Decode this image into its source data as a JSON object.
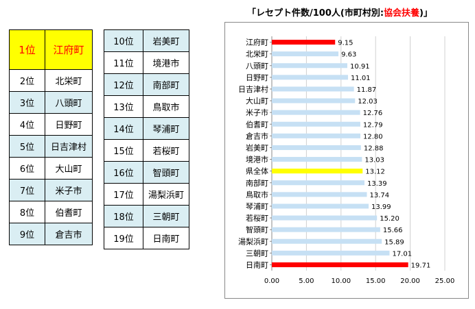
{
  "chart_title": {
    "main": "「レセプト件数/100人(市町村別:",
    "accent": "協会扶養",
    "end": ")」"
  },
  "ranking": {
    "table1": [
      {
        "rank": "1位",
        "name": "江府町"
      },
      {
        "rank": "2位",
        "name": "北栄町"
      },
      {
        "rank": "3位",
        "name": "八頭町"
      },
      {
        "rank": "4位",
        "name": "日野町"
      },
      {
        "rank": "5位",
        "name": "日吉津村"
      },
      {
        "rank": "6位",
        "name": "大山町"
      },
      {
        "rank": "7位",
        "name": "米子市"
      },
      {
        "rank": "8位",
        "name": "伯耆町"
      },
      {
        "rank": "9位",
        "name": "倉吉市"
      }
    ],
    "table2": [
      {
        "rank": "10位",
        "name": "岩美町"
      },
      {
        "rank": "11位",
        "name": "境港市"
      },
      {
        "rank": "12位",
        "name": "南部町"
      },
      {
        "rank": "13位",
        "name": "鳥取市"
      },
      {
        "rank": "14位",
        "name": "琴浦町"
      },
      {
        "rank": "15位",
        "name": "若桜町"
      },
      {
        "rank": "16位",
        "name": "智頭町"
      },
      {
        "rank": "17位",
        "name": "湯梨浜町"
      },
      {
        "rank": "18位",
        "name": "三朝町"
      },
      {
        "rank": "19位",
        "name": "日南町"
      }
    ]
  },
  "colors": {
    "bar": "#c6e0f4",
    "highlight": "#ff0000",
    "all": "#ffff00"
  },
  "chart_data": {
    "type": "bar",
    "orientation": "horizontal",
    "title": "「レセプト件数/100人(市町村別:協会扶養)」",
    "categories": [
      "江府町",
      "北栄町",
      "八頭町",
      "日野町",
      "日吉津村",
      "大山町",
      "米子市",
      "伯耆町",
      "倉吉市",
      "岩美町",
      "境港市",
      "県全体",
      "南部町",
      "鳥取市",
      "琴浦町",
      "若桜町",
      "智頭町",
      "湯梨浜町",
      "三朝町",
      "日南町"
    ],
    "values": [
      9.15,
      9.63,
      10.91,
      11.01,
      11.87,
      12.03,
      12.76,
      12.79,
      12.8,
      12.88,
      13.03,
      13.12,
      13.39,
      13.74,
      13.99,
      15.2,
      15.66,
      15.89,
      17.01,
      19.71
    ],
    "value_labels": [
      "9.15",
      "9.63",
      "10.91",
      "11.01",
      "11.87",
      "12.03",
      "12.76",
      "12.79",
      "12.80",
      "12.88",
      "13.03",
      "13.12",
      "13.39",
      "13.74",
      "13.99",
      "15.20",
      "15.66",
      "15.89",
      "17.01",
      "19.71"
    ],
    "bar_highlight": [
      "red",
      "",
      "",
      "",
      "",
      "",
      "",
      "",
      "",
      "",
      "",
      "yellow",
      "",
      "",
      "",
      "",
      "",
      "",
      "",
      "red"
    ],
    "xlim": [
      0,
      25
    ],
    "xticks": [
      "0.00",
      "5.00",
      "10.00",
      "15.00",
      "20.00",
      "25.00"
    ],
    "grid": true
  }
}
